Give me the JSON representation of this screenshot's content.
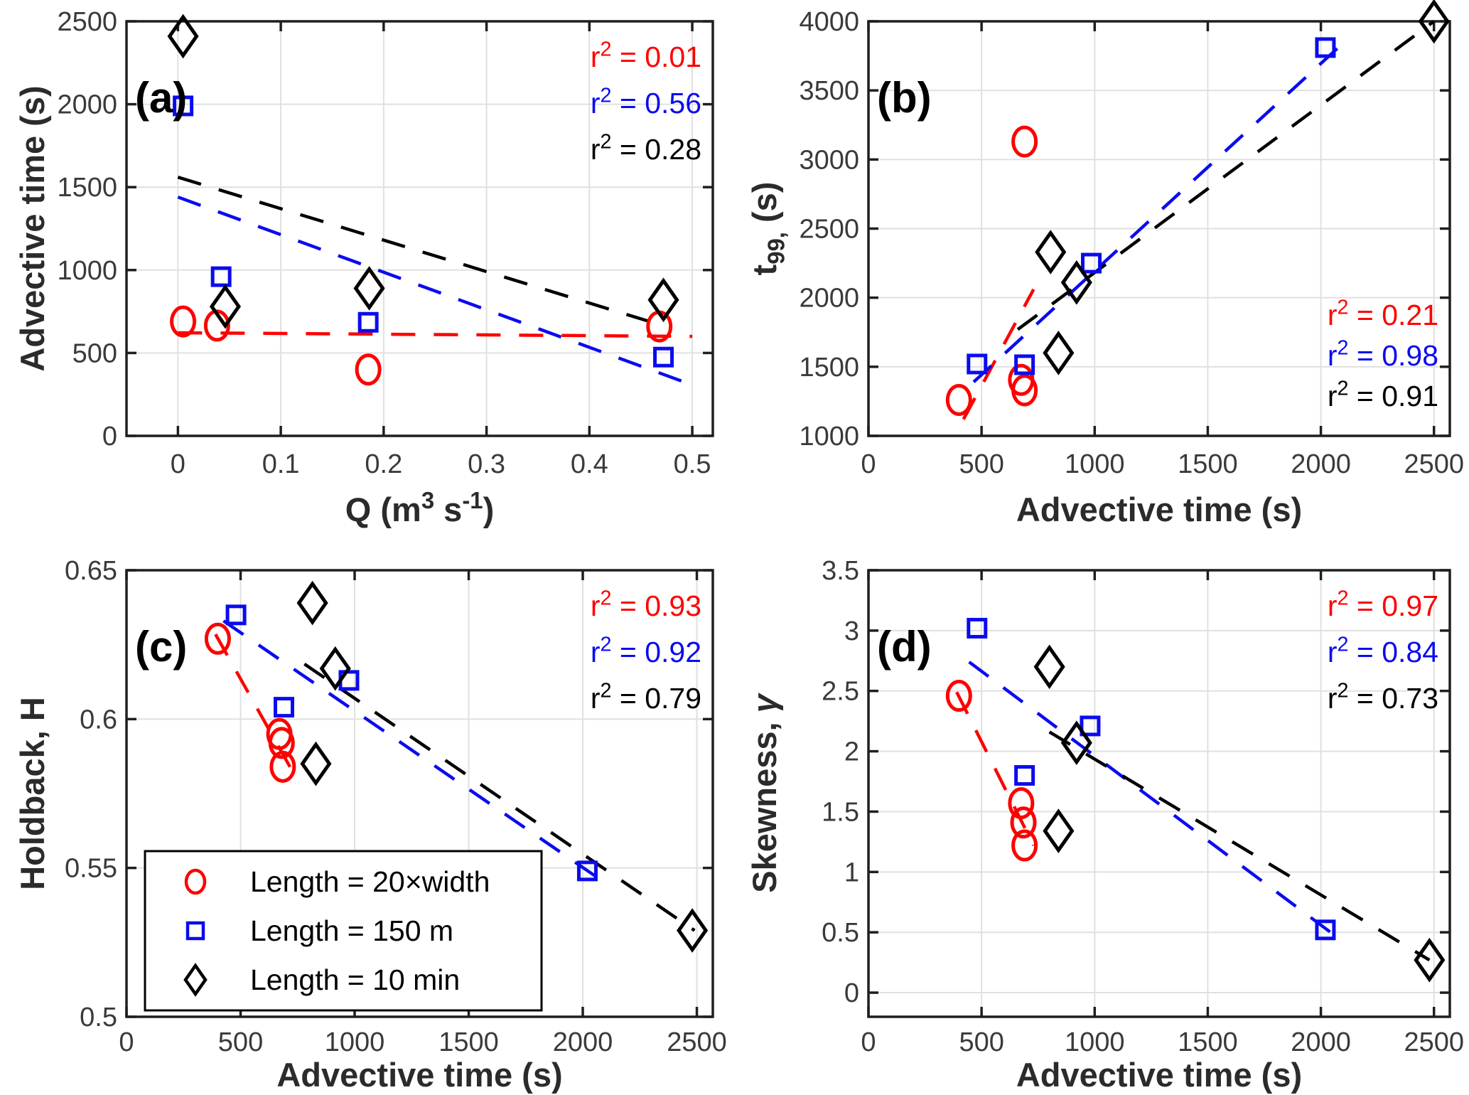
{
  "figure": {
    "background": "#ffffff",
    "colors": {
      "red": "#ff0000",
      "blue": "#0b0bf0",
      "black": "#000000",
      "grid": "#e0e0e0",
      "spine": "#1f1f1f",
      "tick_label": "#3a3a3a",
      "axis_title": "#2b2b2b"
    }
  },
  "legend": {
    "border_color": "#000000",
    "fill": "#ffffff",
    "items": [
      {
        "marker": "circle",
        "color": "red",
        "label": "Length = 20×width"
      },
      {
        "marker": "square",
        "color": "blue",
        "label": "Length = 150 m"
      },
      {
        "marker": "diamond",
        "color": "black",
        "label": "Length = 10 min"
      }
    ]
  },
  "chart_data": [
    {
      "id": "a",
      "type": "scatter",
      "letter": "(a)",
      "xlabel_parts": [
        {
          "t": "Q (m"
        },
        {
          "t": "3",
          "s": "sup"
        },
        {
          "t": " s"
        },
        {
          "t": "-1",
          "s": "sup"
        },
        {
          "t": ")"
        }
      ],
      "ylabel_parts": [
        {
          "t": "Advective time (s)"
        }
      ],
      "xlim": [
        -0.05,
        0.52
      ],
      "ylim": [
        0,
        2500
      ],
      "xticks": {
        "values": [
          0,
          0.1,
          0.2,
          0.3,
          0.4,
          0.5
        ],
        "labels": [
          "0",
          "0.1",
          "0.2",
          "0.3",
          "0.4",
          "0.5"
        ]
      },
      "yticks": {
        "values": [
          0,
          500,
          1000,
          1500,
          2000,
          2500
        ],
        "labels": [
          "0",
          "500",
          "1000",
          "1500",
          "2000",
          "2500"
        ]
      },
      "grid": true,
      "r2_position": "top-right",
      "series": [
        {
          "name": "Length = 20×width",
          "marker": "circle",
          "color": "red",
          "points": [
            [
              0.005,
              690
            ],
            [
              0.038,
              665
            ],
            [
              0.185,
              400
            ],
            [
              0.468,
              660
            ]
          ]
        },
        {
          "name": "Length = 150 m",
          "marker": "square",
          "color": "blue",
          "points": [
            [
              0.005,
              1990
            ],
            [
              0.042,
              960
            ],
            [
              0.185,
              685
            ],
            [
              0.472,
              475
            ]
          ]
        },
        {
          "name": "Length = 10 min",
          "marker": "diamond",
          "color": "black",
          "points": [
            [
              0.005,
              2410
            ],
            [
              0.046,
              780
            ],
            [
              0.186,
              890
            ],
            [
              0.472,
              820
            ]
          ]
        }
      ],
      "trendlines": [
        {
          "color": "red",
          "from": [
            0,
            622
          ],
          "to": [
            0.5,
            600
          ],
          "r2_parts": [
            {
              "t": "r"
            },
            {
              "t": "2",
              "s": "sup"
            },
            {
              "t": " = 0.01"
            }
          ]
        },
        {
          "color": "blue",
          "from": [
            0,
            1440
          ],
          "to": [
            0.49,
            330
          ],
          "r2_parts": [
            {
              "t": "r"
            },
            {
              "t": "2",
              "s": "sup"
            },
            {
              "t": " = 0.56"
            }
          ]
        },
        {
          "color": "black",
          "from": [
            0,
            1560
          ],
          "to": [
            0.47,
            668
          ],
          "r2_parts": [
            {
              "t": "r"
            },
            {
              "t": "2",
              "s": "sup"
            },
            {
              "t": " = 0.28"
            }
          ]
        }
      ]
    },
    {
      "id": "b",
      "type": "scatter",
      "letter": "(b)",
      "xlabel_parts": [
        {
          "t": "Advective time (s)"
        }
      ],
      "ylabel_parts": [
        {
          "t": "t"
        },
        {
          "t": "99,",
          "s": "sub"
        },
        {
          "t": " (s)"
        }
      ],
      "xlim": [
        0,
        2570
      ],
      "ylim": [
        1000,
        4000
      ],
      "xticks": {
        "values": [
          0,
          500,
          1000,
          1500,
          2000,
          2500
        ],
        "labels": [
          "0",
          "500",
          "1000",
          "1500",
          "2000",
          "2500"
        ]
      },
      "yticks": {
        "values": [
          1000,
          1500,
          2000,
          2500,
          3000,
          3500,
          4000
        ],
        "labels": [
          "1000",
          "1500",
          "2000",
          "2500",
          "3000",
          "3500",
          "4000"
        ]
      },
      "grid": true,
      "r2_position": "bottom-right",
      "series": [
        {
          "name": "Length = 20×width",
          "marker": "circle",
          "color": "red",
          "points": [
            [
              400,
              1260
            ],
            [
              675,
              1405
            ],
            [
              690,
              1330
            ],
            [
              690,
              3130
            ]
          ]
        },
        {
          "name": "Length = 150 m",
          "marker": "square",
          "color": "blue",
          "points": [
            [
              480,
              1520
            ],
            [
              690,
              1515
            ],
            [
              985,
              2250
            ],
            [
              2020,
              3810
            ]
          ]
        },
        {
          "name": "Length = 10 min",
          "marker": "diamond",
          "color": "black",
          "points": [
            [
              805,
              2330
            ],
            [
              920,
              2110
            ],
            [
              840,
              1600
            ],
            [
              2500,
              4000
            ]
          ]
        }
      ],
      "trendlines": [
        {
          "color": "red",
          "from": [
            420,
            1120
          ],
          "to": [
            730,
            2060
          ],
          "r2_parts": [
            {
              "t": "r"
            },
            {
              "t": "2",
              "s": "sup"
            },
            {
              "t": " = 0.21"
            }
          ]
        },
        {
          "color": "blue",
          "from": [
            465,
            1390
          ],
          "to": [
            2110,
            3860
          ],
          "r2_parts": [
            {
              "t": "r"
            },
            {
              "t": "2",
              "s": "sup"
            },
            {
              "t": " = 0.98"
            }
          ]
        },
        {
          "color": "black",
          "from": [
            660,
            1770
          ],
          "to": [
            2500,
            4000
          ],
          "r2_parts": [
            {
              "t": "r"
            },
            {
              "t": "2",
              "s": "sup"
            },
            {
              "t": " = 0.91"
            }
          ]
        }
      ]
    },
    {
      "id": "c",
      "type": "scatter",
      "letter": "(c)",
      "xlabel_parts": [
        {
          "t": "Advective time (s)"
        }
      ],
      "ylabel_parts": [
        {
          "t": "Holdback, H"
        }
      ],
      "xlim": [
        0,
        2570
      ],
      "ylim": [
        0.5,
        0.65
      ],
      "xticks": {
        "values": [
          0,
          500,
          1000,
          1500,
          2000,
          2500
        ],
        "labels": [
          "0",
          "500",
          "1000",
          "1500",
          "2000",
          "2500"
        ]
      },
      "yticks": {
        "values": [
          0.5,
          0.55,
          0.6,
          0.65
        ],
        "labels": [
          "0.5",
          "0.55",
          "0.6",
          "0.65"
        ]
      },
      "grid": true,
      "r2_position": "top-right",
      "has_legend": true,
      "series": [
        {
          "name": "Length = 20×width",
          "marker": "circle",
          "color": "red",
          "points": [
            [
              400,
              0.627
            ],
            [
              670,
              0.595
            ],
            [
              680,
              0.592
            ],
            [
              685,
              0.584
            ]
          ]
        },
        {
          "name": "Length = 150 m",
          "marker": "square",
          "color": "blue",
          "points": [
            [
              480,
              0.635
            ],
            [
              690,
              0.604
            ],
            [
              975,
              0.613
            ],
            [
              2020,
              0.549
            ]
          ]
        },
        {
          "name": "Length = 10 min",
          "marker": "diamond",
          "color": "black",
          "points": [
            [
              815,
              0.639
            ],
            [
              915,
              0.617
            ],
            [
              830,
              0.585
            ],
            [
              2480,
              0.529
            ]
          ]
        }
      ],
      "trendlines": [
        {
          "color": "red",
          "from": [
            390,
            0.6285
          ],
          "to": [
            720,
            0.5835
          ],
          "r2_parts": [
            {
              "t": "r"
            },
            {
              "t": "2",
              "s": "sup"
            },
            {
              "t": " = 0.93"
            }
          ]
        },
        {
          "color": "blue",
          "from": [
            425,
            0.633
          ],
          "to": [
            2060,
            0.547
          ],
          "r2_parts": [
            {
              "t": "r"
            },
            {
              "t": "2",
              "s": "sup"
            },
            {
              "t": " = 0.92"
            }
          ]
        },
        {
          "color": "black",
          "from": [
            780,
            0.6185
          ],
          "to": [
            2490,
            0.529
          ],
          "r2_parts": [
            {
              "t": "r"
            },
            {
              "t": "2",
              "s": "sup"
            },
            {
              "t": " = 0.79"
            }
          ]
        }
      ]
    },
    {
      "id": "d",
      "type": "scatter",
      "letter": "(d)",
      "xlabel_parts": [
        {
          "t": "Advective time (s)"
        }
      ],
      "ylabel_parts": [
        {
          "t": "Skewness, "
        },
        {
          "t": "γ",
          "s": "italic"
        }
      ],
      "xlim": [
        0,
        2570
      ],
      "ylim": [
        -0.2,
        3.5
      ],
      "xticks": {
        "values": [
          0,
          500,
          1000,
          1500,
          2000,
          2500
        ],
        "labels": [
          "0",
          "500",
          "1000",
          "1500",
          "2000",
          "2500"
        ]
      },
      "yticks": {
        "values": [
          0,
          0.5,
          1,
          1.5,
          2,
          2.5,
          3,
          3.5
        ],
        "labels": [
          "0",
          "0.5",
          "1",
          "1.5",
          "2",
          "2.5",
          "3",
          "3.5"
        ]
      },
      "grid": true,
      "r2_position": "top-right",
      "series": [
        {
          "name": "Length = 20×width",
          "marker": "circle",
          "color": "red",
          "points": [
            [
              400,
              2.46
            ],
            [
              675,
              1.57
            ],
            [
              685,
              1.41
            ],
            [
              690,
              1.22
            ]
          ]
        },
        {
          "name": "Length = 150 m",
          "marker": "square",
          "color": "blue",
          "points": [
            [
              480,
              3.02
            ],
            [
              690,
              1.8
            ],
            [
              980,
              2.21
            ],
            [
              2020,
              0.52
            ]
          ]
        },
        {
          "name": "Length = 10 min",
          "marker": "diamond",
          "color": "black",
          "points": [
            [
              800,
              2.7
            ],
            [
              920,
              2.07
            ],
            [
              840,
              1.34
            ],
            [
              2480,
              0.27
            ]
          ]
        }
      ],
      "trendlines": [
        {
          "color": "red",
          "from": [
            390,
            2.49
          ],
          "to": [
            730,
            1.22
          ],
          "r2_parts": [
            {
              "t": "r"
            },
            {
              "t": "2",
              "s": "sup"
            },
            {
              "t": " = 0.97"
            }
          ]
        },
        {
          "color": "blue",
          "from": [
            445,
            2.74
          ],
          "to": [
            2050,
            0.49
          ],
          "r2_parts": [
            {
              "t": "r"
            },
            {
              "t": "2",
              "s": "sup"
            },
            {
              "t": " = 0.84"
            }
          ]
        },
        {
          "color": "black",
          "from": [
            800,
            2.16
          ],
          "to": [
            2480,
            0.27
          ],
          "r2_parts": [
            {
              "t": "r"
            },
            {
              "t": "2",
              "s": "sup"
            },
            {
              "t": " = 0.73"
            }
          ]
        }
      ]
    }
  ]
}
